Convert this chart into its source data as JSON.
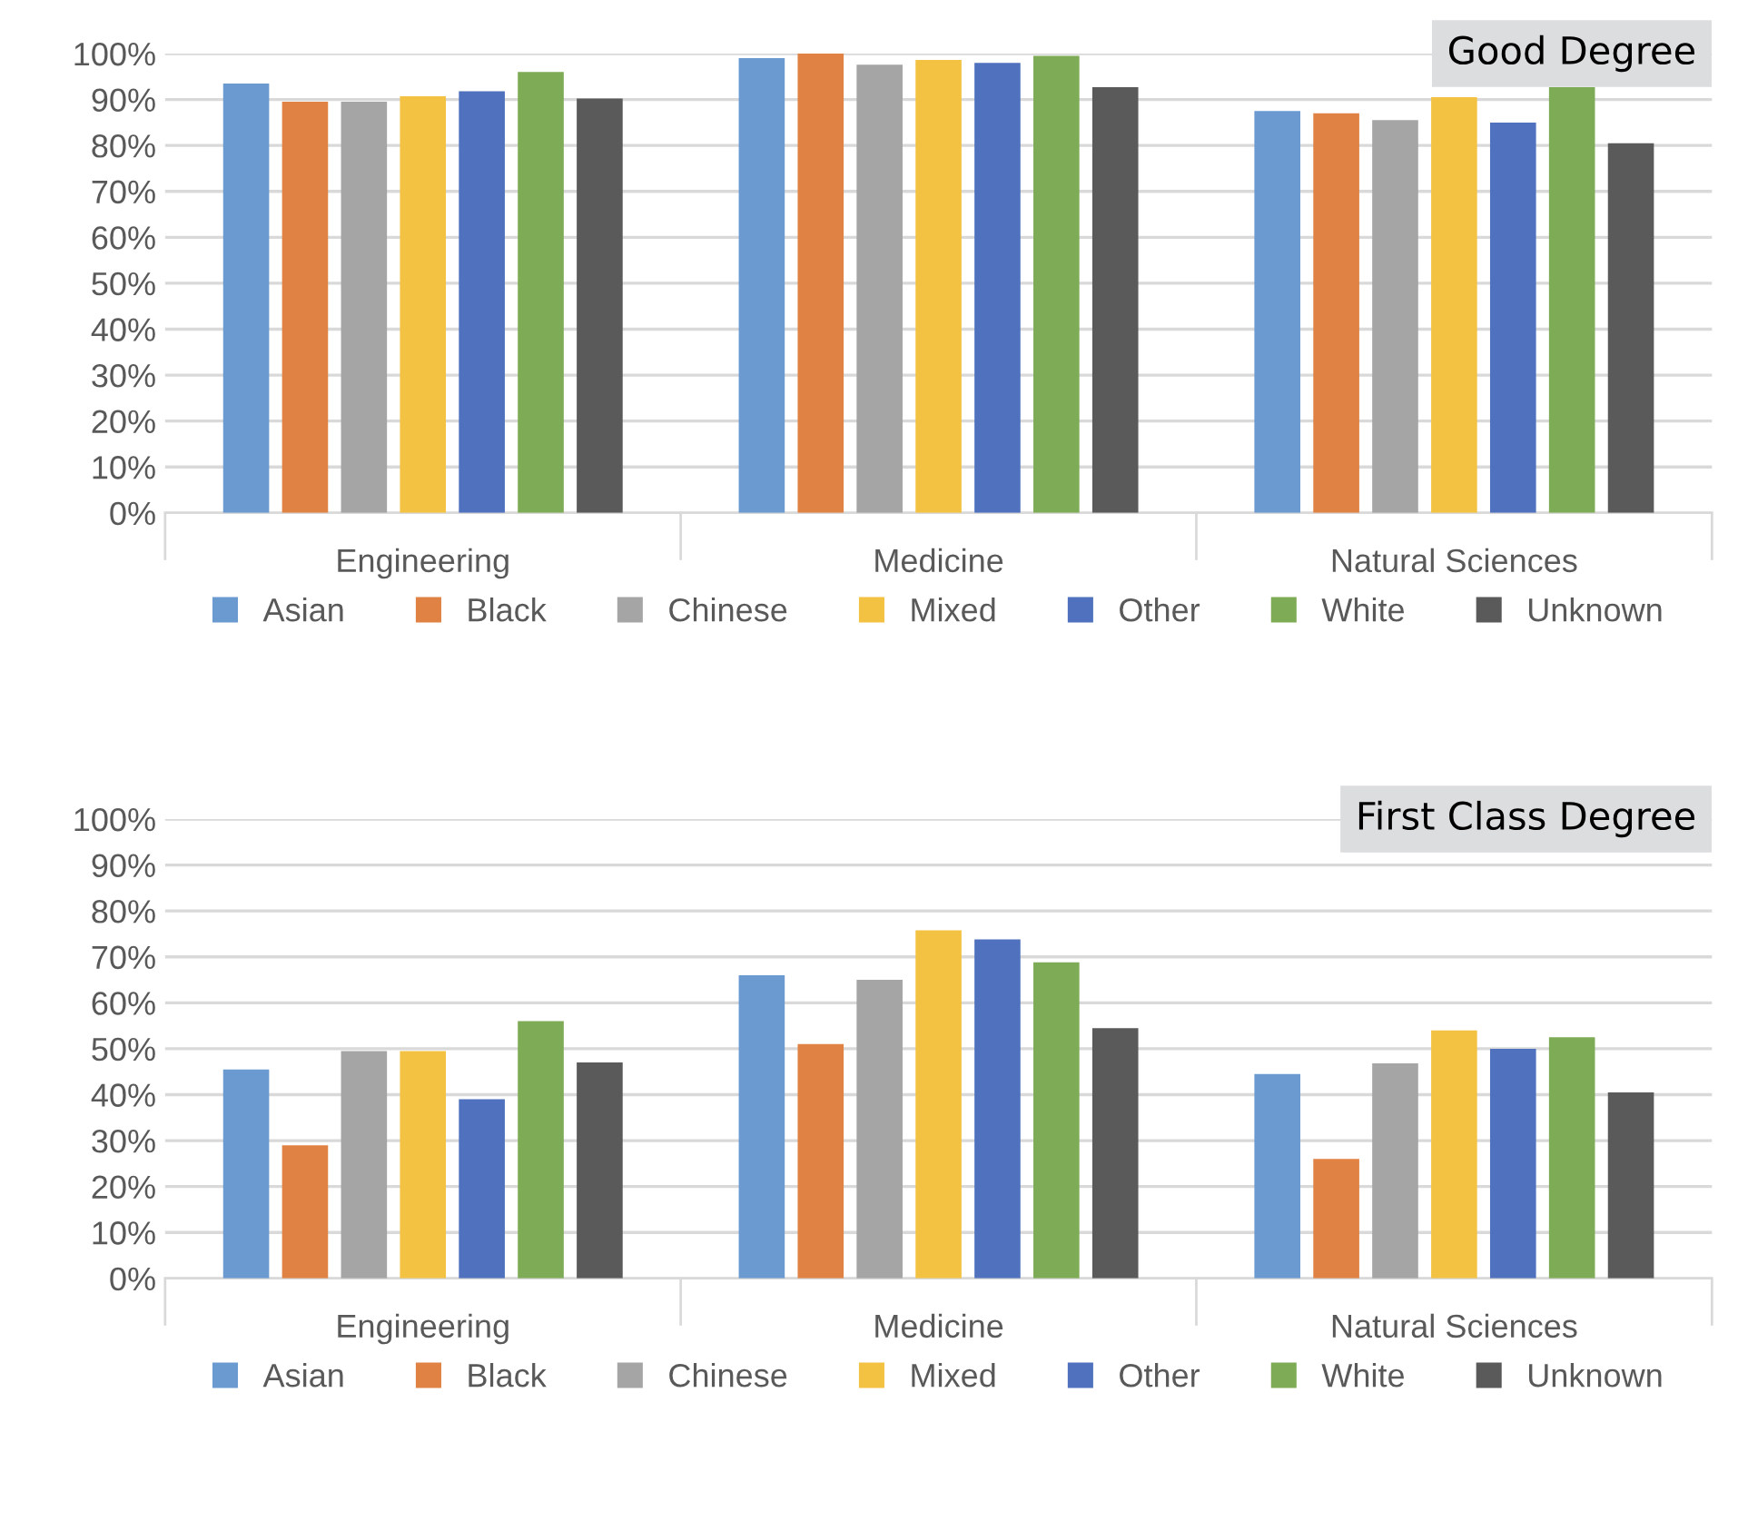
{
  "chart_data": [
    {
      "type": "bar",
      "title": "Good Degree",
      "categories": [
        "Engineering",
        "Medicine",
        "Natural Sciences"
      ],
      "series": [
        {
          "name": "Asian",
          "color": "#6a9ad0",
          "values": [
            93.5,
            99,
            87.5
          ]
        },
        {
          "name": "Black",
          "color": "#df8244",
          "values": [
            89.5,
            100,
            87
          ]
        },
        {
          "name": "Chinese",
          "color": "#a5a5a5",
          "values": [
            89.5,
            97.6,
            85.5
          ]
        },
        {
          "name": "Mixed",
          "color": "#f3c242",
          "values": [
            90.7,
            98.6,
            90.5
          ]
        },
        {
          "name": "Other",
          "color": "#4f71be",
          "values": [
            91.8,
            98,
            85
          ]
        },
        {
          "name": "White",
          "color": "#7eab55",
          "values": [
            96,
            99.5,
            92.7
          ]
        },
        {
          "name": "Unknown",
          "color": "#5a5a5a",
          "values": [
            90.2,
            92.7,
            80.5
          ]
        }
      ],
      "ylim": [
        0,
        100
      ],
      "yticks": [
        {
          "value": 0,
          "label": "0%"
        },
        {
          "value": 10,
          "label": "10%"
        },
        {
          "value": 20,
          "label": "20%"
        },
        {
          "value": 30,
          "label": "30%"
        },
        {
          "value": 40,
          "label": "40%"
        },
        {
          "value": 50,
          "label": "50%"
        },
        {
          "value": 60,
          "label": "60%"
        },
        {
          "value": 70,
          "label": "70%"
        },
        {
          "value": 80,
          "label": "80%"
        },
        {
          "value": 90,
          "label": "90%"
        },
        {
          "value": 100,
          "label": "100%"
        }
      ],
      "grid": "y",
      "legend": "bottom"
    },
    {
      "type": "bar",
      "title": "First Class Degree",
      "categories": [
        "Engineering",
        "Medicine",
        "Natural Sciences"
      ],
      "series": [
        {
          "name": "Asian",
          "color": "#6a9ad0",
          "values": [
            45.5,
            66,
            44.5
          ]
        },
        {
          "name": "Black",
          "color": "#df8244",
          "values": [
            29,
            51,
            26
          ]
        },
        {
          "name": "Chinese",
          "color": "#a5a5a5",
          "values": [
            49.5,
            65,
            46.8
          ]
        },
        {
          "name": "Mixed",
          "color": "#f3c242",
          "values": [
            49.5,
            75.8,
            54
          ]
        },
        {
          "name": "Other",
          "color": "#4f71be",
          "values": [
            39,
            73.8,
            50
          ]
        },
        {
          "name": "White",
          "color": "#7eab55",
          "values": [
            56,
            68.8,
            52.5
          ]
        },
        {
          "name": "Unknown",
          "color": "#5a5a5a",
          "values": [
            47,
            54.5,
            40.5
          ]
        }
      ],
      "ylim": [
        0,
        100
      ],
      "yticks": [
        {
          "value": 0,
          "label": "0%"
        },
        {
          "value": 10,
          "label": "10%"
        },
        {
          "value": 20,
          "label": "20%"
        },
        {
          "value": 30,
          "label": "30%"
        },
        {
          "value": 40,
          "label": "40%"
        },
        {
          "value": 50,
          "label": "50%"
        },
        {
          "value": 60,
          "label": "60%"
        },
        {
          "value": 70,
          "label": "70%"
        },
        {
          "value": 80,
          "label": "80%"
        },
        {
          "value": 90,
          "label": "90%"
        },
        {
          "value": 100,
          "label": "100%"
        }
      ],
      "grid": "y",
      "legend": "bottom"
    }
  ]
}
